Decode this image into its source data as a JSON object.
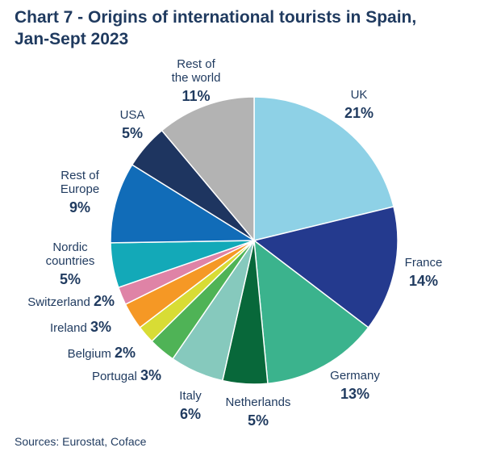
{
  "title_line1": "Chart 7 - Origins of international tourists in Spain,",
  "title_line2": "Jan-Sept 2023",
  "source": "Sources: Eurostat, Coface",
  "chart_data": {
    "type": "pie",
    "unit": "%",
    "slices": [
      {
        "name": "UK",
        "value": 21,
        "label": "21%",
        "color": "#8ed1e6"
      },
      {
        "name": "France",
        "value": 14,
        "label": "14%",
        "color": "#243a8e"
      },
      {
        "name": "Germany",
        "value": 13,
        "label": "13%",
        "color": "#3bb38d"
      },
      {
        "name": "Netherlands",
        "value": 5,
        "label": "5%",
        "color": "#08683a"
      },
      {
        "name": "Italy",
        "value": 6,
        "label": "6%",
        "color": "#86c9bd"
      },
      {
        "name": "Portugal",
        "value": 3,
        "label": "3%",
        "color": "#4fb356"
      },
      {
        "name": "Belgium",
        "value": 2,
        "label": "2%",
        "color": "#d8dc35"
      },
      {
        "name": "Ireland",
        "value": 3,
        "label": "3%",
        "color": "#f59825"
      },
      {
        "name": "Switzerland",
        "value": 2,
        "label": "2%",
        "color": "#df83a6"
      },
      {
        "name": "Nordic countries",
        "value": 5,
        "label": "5%",
        "color": "#13a9b8"
      },
      {
        "name": "Rest of Europe",
        "value": 9,
        "label": "9%",
        "color": "#116cb8"
      },
      {
        "name": "USA",
        "value": 5,
        "label": "5%",
        "color": "#1e3560"
      },
      {
        "name": "Rest of the world",
        "value": 11,
        "label": "11%",
        "color": "#b3b3b3"
      }
    ]
  }
}
